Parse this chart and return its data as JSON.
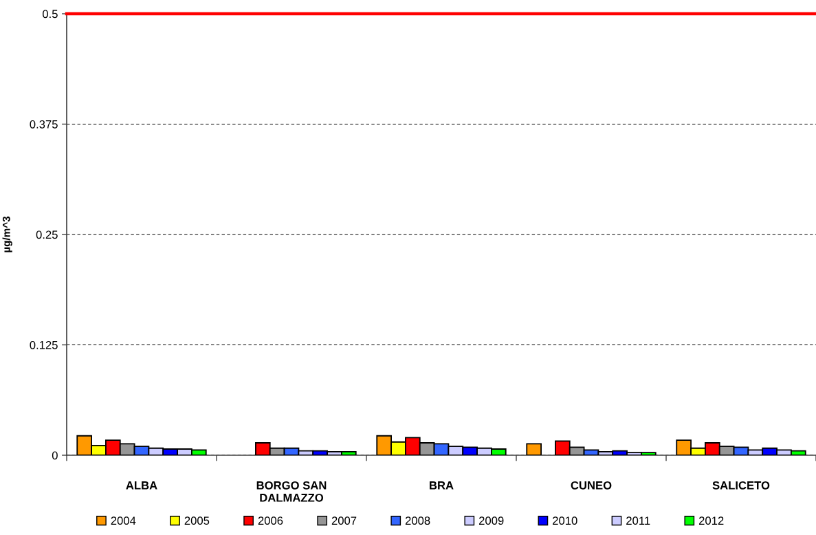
{
  "chart_data": {
    "type": "bar",
    "ylabel": "µg/m^3",
    "categories": [
      "ALBA",
      "BORGO SAN DALMAZZO",
      "BRA",
      "CUNEO",
      "SALICETO"
    ],
    "series": [
      {
        "name": "2004",
        "color": "#ff9900",
        "values": [
          0.022,
          null,
          0.022,
          0.013,
          0.017
        ]
      },
      {
        "name": "2005",
        "color": "#ffff00",
        "values": [
          0.011,
          null,
          0.015,
          null,
          0.008
        ]
      },
      {
        "name": "2006",
        "color": "#ff0000",
        "values": [
          0.017,
          0.014,
          0.02,
          0.016,
          0.014
        ]
      },
      {
        "name": "2007",
        "color": "#969696",
        "values": [
          0.013,
          0.008,
          0.014,
          0.009,
          0.01
        ]
      },
      {
        "name": "2008",
        "color": "#3366ff",
        "values": [
          0.01,
          0.008,
          0.013,
          0.006,
          0.009
        ]
      },
      {
        "name": "2009",
        "color": "#ccccff",
        "values": [
          0.008,
          0.005,
          0.01,
          0.004,
          0.006
        ]
      },
      {
        "name": "2010",
        "color": "#0000ff",
        "values": [
          0.007,
          0.005,
          0.009,
          0.005,
          0.008
        ]
      },
      {
        "name": "2011",
        "color": "#ccccff",
        "values": [
          0.007,
          0.004,
          0.008,
          0.003,
          0.006
        ]
      },
      {
        "name": "2012",
        "color": "#00ff00",
        "values": [
          0.006,
          0.004,
          0.007,
          0.003,
          0.005
        ]
      }
    ],
    "ylim": [
      0,
      0.5
    ],
    "yticks": [
      0,
      0.125,
      0.25,
      0.375,
      0.5
    ],
    "ref_lines": [
      {
        "axis": "y",
        "value": 0.5,
        "color": "#ff0000"
      }
    ],
    "grid": "y",
    "legend": "bottom"
  }
}
